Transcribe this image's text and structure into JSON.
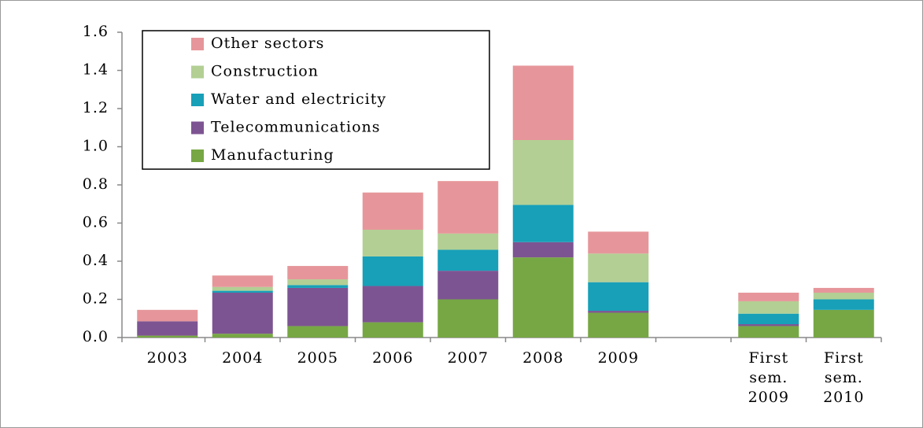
{
  "chart_data": {
    "type": "bar",
    "stacked": true,
    "categories": [
      "2003",
      "2004",
      "2005",
      "2006",
      "2007",
      "2008",
      "2009",
      null,
      "First sem. 2009",
      "First sem. 2010"
    ],
    "series": [
      {
        "name": "Manufacturing",
        "color": "#77a744",
        "values": [
          0.01,
          0.02,
          0.06,
          0.08,
          0.2,
          0.42,
          0.13,
          null,
          0.06,
          0.145
        ]
      },
      {
        "name": "Telecommunications",
        "color": "#7d5492",
        "values": [
          0.075,
          0.215,
          0.2,
          0.19,
          0.15,
          0.08,
          0.01,
          null,
          0.01,
          0
        ]
      },
      {
        "name": "Water and electricity",
        "color": "#17a0b8",
        "values": [
          0,
          0.01,
          0.015,
          0.155,
          0.11,
          0.195,
          0.15,
          null,
          0.055,
          0.055
        ]
      },
      {
        "name": "Construction",
        "color": "#b3cf94",
        "values": [
          0,
          0.02,
          0.03,
          0.14,
          0.085,
          0.34,
          0.15,
          null,
          0.065,
          0.035
        ]
      },
      {
        "name": "Other sectors",
        "color": "#e6969a",
        "values": [
          0.06,
          0.06,
          0.07,
          0.195,
          0.275,
          0.39,
          0.115,
          null,
          0.045,
          0.025
        ]
      }
    ],
    "ylim": [
      0,
      1.6
    ],
    "yticks": [
      {
        "value": 0,
        "label": "0.0"
      },
      0.2,
      0.4,
      0.6,
      0.8,
      {
        "value": 1,
        "label": "1.0"
      },
      1.2,
      1.4,
      1.6
    ],
    "grid": false,
    "legend": "upper left"
  }
}
